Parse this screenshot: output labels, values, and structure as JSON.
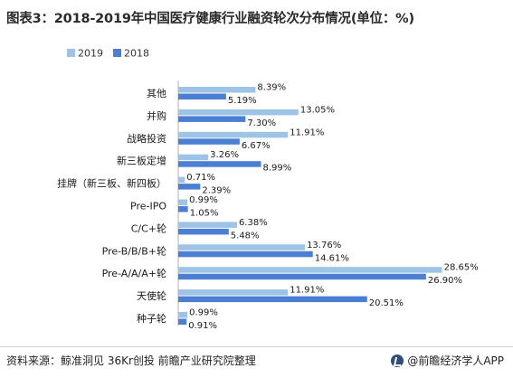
{
  "title": "图表3：2018-2019年中国医疗健康行业融资轮次分布情况(单位：%)",
  "source": "资料来源：鲸准洞见 36Kr创投 前瞻产业研究院整理",
  "brand": "@前瞻经济学人APP",
  "colors": {
    "2019": "#9dc3e6",
    "2018": "#4a7fd4"
  },
  "chart_data": {
    "type": "bar",
    "orientation": "horizontal",
    "categories": [
      "其他",
      "并购",
      "战略投资",
      "新三板定增",
      "挂牌（新三板、新四板）",
      "Pre-IPO",
      "C/C+轮",
      "Pre-B/B/B+轮",
      "Pre-A/A/A+轮",
      "天使轮",
      "种子轮"
    ],
    "series": [
      {
        "name": "2019",
        "values": [
          8.39,
          13.05,
          11.91,
          3.26,
          0.71,
          0.99,
          6.38,
          13.76,
          28.65,
          11.91,
          0.99
        ]
      },
      {
        "name": "2018",
        "values": [
          5.19,
          7.3,
          6.67,
          8.99,
          2.39,
          1.05,
          5.48,
          14.61,
          26.9,
          20.51,
          0.91
        ]
      }
    ],
    "unit": "%",
    "xlim": [
      0,
      30
    ],
    "legend_position": "top-left",
    "grid": false
  }
}
